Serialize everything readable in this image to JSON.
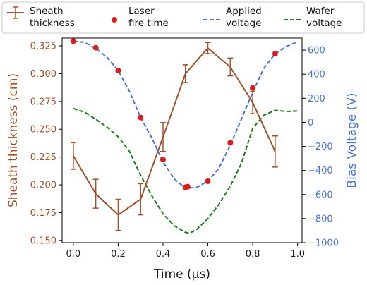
{
  "chart_data": {
    "type": "line",
    "xlabel": "Time (μs)",
    "ylabel_left": "Sheath thickness (cm)",
    "ylabel_right": "Bias Voltage (V)",
    "xlim": [
      -0.05,
      1.02
    ],
    "ylim_left": [
      0.148,
      0.332
    ],
    "ylim_right": [
      -1000,
      700
    ],
    "x_ticks": [
      0.0,
      0.2,
      0.4,
      0.6,
      0.8,
      1.0
    ],
    "x_tick_labels": [
      "0.0",
      "0.2",
      "0.4",
      "0.6",
      "0.8",
      "1.0"
    ],
    "y_left_ticks": [
      0.15,
      0.175,
      0.2,
      0.225,
      0.25,
      0.275,
      0.3,
      0.325
    ],
    "y_left_tick_labels": [
      "0.150",
      "0.175",
      "0.200",
      "0.225",
      "0.250",
      "0.275",
      "0.300",
      "0.325"
    ],
    "y_right_ticks": [
      -1000,
      -800,
      -600,
      -400,
      -200,
      0,
      200,
      400,
      600
    ],
    "y_right_tick_labels": [
      "−1000",
      "−800",
      "−600",
      "−400",
      "−200",
      "0",
      "200",
      "400",
      "600"
    ],
    "grid": false,
    "legend_position": "top",
    "series": [
      {
        "name": "Sheath\nthickness",
        "kind": "line-errorbar",
        "axis": "left",
        "color": "#a0522d",
        "x": [
          0.0,
          0.1,
          0.2,
          0.3,
          0.4,
          0.5,
          0.6,
          0.7,
          0.8,
          0.9
        ],
        "y": [
          0.226,
          0.192,
          0.173,
          0.187,
          0.243,
          0.3,
          0.323,
          0.306,
          0.274,
          0.23
        ],
        "yerr": [
          0.012,
          0.013,
          0.014,
          0.014,
          0.013,
          0.008,
          0.005,
          0.008,
          0.01,
          0.014
        ]
      },
      {
        "name": "Laser\nfire time",
        "kind": "scatter",
        "axis": "right",
        "color": "#dd1a1a",
        "x": [
          0.0,
          0.1,
          0.2,
          0.3,
          0.4,
          0.5,
          0.51,
          0.6,
          0.7,
          0.8,
          0.9
        ],
        "y": [
          675,
          620,
          430,
          40,
          -310,
          -540,
          -535,
          -490,
          -170,
          285,
          570
        ]
      },
      {
        "name": "Applied\nvoltage",
        "kind": "line-dashed",
        "axis": "right",
        "color": "#4a72d6",
        "x": [
          0.0,
          0.05,
          0.1,
          0.15,
          0.2,
          0.25,
          0.3,
          0.35,
          0.4,
          0.45,
          0.5,
          0.55,
          0.6,
          0.65,
          0.7,
          0.75,
          0.8,
          0.85,
          0.9,
          0.95,
          1.0
        ],
        "y": [
          675,
          665,
          615,
          540,
          430,
          260,
          40,
          -130,
          -330,
          -470,
          -550,
          -540,
          -490,
          -380,
          -190,
          30,
          250,
          450,
          570,
          630,
          670
        ]
      },
      {
        "name": "Wafer\nvoltage",
        "kind": "line-dashed",
        "axis": "right",
        "color": "#1b7a1b",
        "x": [
          0.0,
          0.05,
          0.1,
          0.15,
          0.2,
          0.25,
          0.3,
          0.35,
          0.4,
          0.45,
          0.5,
          0.52,
          0.55,
          0.6,
          0.65,
          0.7,
          0.75,
          0.8,
          0.85,
          0.9,
          0.95,
          1.0
        ],
        "y": [
          115,
          85,
          25,
          -40,
          -120,
          -240,
          -440,
          -610,
          -760,
          -860,
          -915,
          -920,
          -890,
          -800,
          -680,
          -530,
          -340,
          -50,
          60,
          100,
          90,
          95
        ]
      }
    ]
  }
}
